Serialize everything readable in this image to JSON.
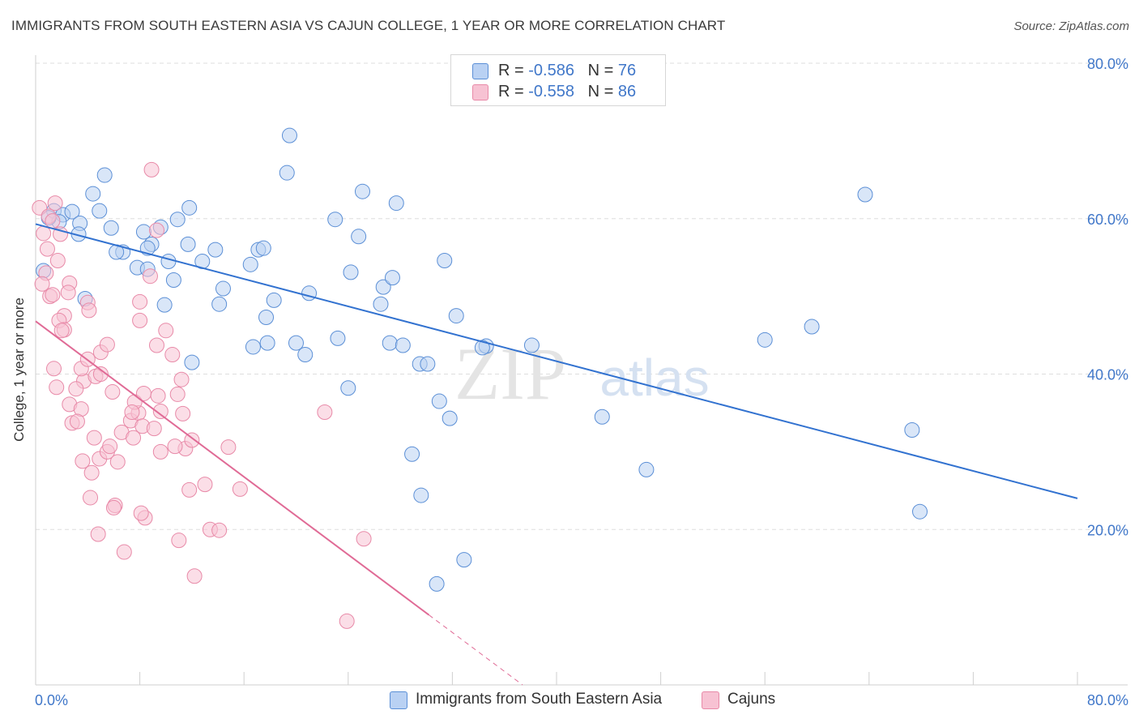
{
  "header": {
    "title": "IMMIGRANTS FROM SOUTH EASTERN ASIA VS CAJUN COLLEGE, 1 YEAR OR MORE CORRELATION CHART",
    "source": "Source: ZipAtlas.com"
  },
  "watermark": {
    "zip": "ZIP",
    "atlas": "atlas"
  },
  "legend": {
    "rows": [
      {
        "r_label": "R = ",
        "r_value": "-0.586",
        "n_label": "N = ",
        "n_value": "76"
      },
      {
        "r_label": "R = ",
        "r_value": "-0.558",
        "n_label": "N = ",
        "n_value": "86"
      }
    ]
  },
  "colors": {
    "blue_fill": "#b9d1f3",
    "blue_stroke": "#5b8fd6",
    "blue_line": "#3272d0",
    "pink_fill": "#f7c2d3",
    "pink_stroke": "#e88aa8",
    "pink_line": "#e06b96",
    "axis_label": "#4077c9",
    "grid": "#dddddd"
  },
  "chart_data": {
    "type": "scatter",
    "title": "IMMIGRANTS FROM SOUTH EASTERN ASIA VS CAJUN COLLEGE, 1 YEAR OR MORE CORRELATION CHART",
    "xlabel": "",
    "ylabel": "College, 1 year or more",
    "xlim": [
      0,
      80
    ],
    "ylim": [
      0,
      80
    ],
    "x_tick_labels": [
      "0.0%",
      "80.0%"
    ],
    "y_tick_labels": [
      "20.0%",
      "40.0%",
      "60.0%",
      "80.0%"
    ],
    "y_ticks": [
      20,
      40,
      60,
      80
    ],
    "grid": true,
    "legend_position": "top-center and bottom",
    "series": [
      {
        "name": "Immigrants from South Eastern Asia",
        "color": "#5b8fd6",
        "trend": {
          "x": [
            0,
            80
          ],
          "y": [
            59.3,
            24.0
          ]
        },
        "points": [
          [
            1.4,
            61.0
          ],
          [
            2.1,
            60.5
          ],
          [
            2.8,
            60.9
          ],
          [
            0.6,
            53.3
          ],
          [
            1.8,
            59.6
          ],
          [
            3.4,
            59.4
          ],
          [
            4.4,
            63.2
          ],
          [
            5.3,
            65.6
          ],
          [
            4.9,
            61.0
          ],
          [
            3.3,
            58.0
          ],
          [
            5.8,
            58.8
          ],
          [
            6.7,
            55.7
          ],
          [
            6.2,
            55.7
          ],
          [
            8.3,
            58.3
          ],
          [
            9.6,
            58.9
          ],
          [
            8.9,
            56.7
          ],
          [
            7.8,
            53.7
          ],
          [
            8.6,
            56.2
          ],
          [
            10.9,
            59.9
          ],
          [
            11.8,
            61.4
          ],
          [
            12.8,
            54.5
          ],
          [
            10.2,
            54.5
          ],
          [
            10.6,
            52.1
          ],
          [
            9.9,
            48.9
          ],
          [
            11.7,
            56.7
          ],
          [
            13.8,
            56.0
          ],
          [
            14.4,
            51.0
          ],
          [
            14.1,
            49.0
          ],
          [
            16.5,
            54.1
          ],
          [
            17.1,
            56.0
          ],
          [
            17.5,
            56.2
          ],
          [
            18.3,
            49.5
          ],
          [
            17.7,
            47.3
          ],
          [
            19.3,
            65.9
          ],
          [
            19.5,
            70.7
          ],
          [
            21.0,
            50.4
          ],
          [
            20.0,
            44.0
          ],
          [
            20.7,
            42.5
          ],
          [
            23.0,
            59.9
          ],
          [
            23.2,
            44.6
          ],
          [
            24.0,
            38.2
          ],
          [
            24.2,
            53.1
          ],
          [
            24.8,
            57.7
          ],
          [
            25.1,
            63.5
          ],
          [
            26.5,
            49.0
          ],
          [
            26.7,
            51.2
          ],
          [
            27.4,
            52.4
          ],
          [
            27.2,
            44.0
          ],
          [
            28.2,
            43.7
          ],
          [
            27.7,
            62.0
          ],
          [
            28.9,
            29.7
          ],
          [
            29.6,
            24.4
          ],
          [
            29.5,
            41.3
          ],
          [
            30.1,
            41.3
          ],
          [
            31.0,
            36.5
          ],
          [
            31.4,
            54.6
          ],
          [
            31.8,
            34.3
          ],
          [
            32.3,
            47.5
          ],
          [
            32.9,
            16.1
          ],
          [
            30.8,
            13.0
          ],
          [
            34.6,
            43.6
          ],
          [
            34.3,
            43.4
          ],
          [
            38.1,
            43.7
          ],
          [
            43.5,
            34.5
          ],
          [
            46.9,
            27.7
          ],
          [
            17.8,
            44.0
          ],
          [
            56.0,
            44.4
          ],
          [
            59.6,
            46.1
          ],
          [
            63.7,
            63.1
          ],
          [
            67.3,
            32.8
          ],
          [
            67.9,
            22.3
          ],
          [
            8.6,
            53.5
          ],
          [
            1.0,
            60.1
          ],
          [
            16.7,
            43.5
          ],
          [
            12.0,
            41.5
          ],
          [
            3.8,
            49.7
          ]
        ]
      },
      {
        "name": "Cajuns",
        "color": "#e88aa8",
        "trend": {
          "x": [
            0,
            30.2
          ],
          "y": [
            46.8,
            9.0
          ]
        },
        "points": [
          [
            0.3,
            61.4
          ],
          [
            1.0,
            60.3
          ],
          [
            0.6,
            58.1
          ],
          [
            1.3,
            59.7
          ],
          [
            1.9,
            58.0
          ],
          [
            0.9,
            56.1
          ],
          [
            1.7,
            54.6
          ],
          [
            0.8,
            53.0
          ],
          [
            0.5,
            51.6
          ],
          [
            1.1,
            50.0
          ],
          [
            1.3,
            50.2
          ],
          [
            2.6,
            51.7
          ],
          [
            2.5,
            50.5
          ],
          [
            2.2,
            47.5
          ],
          [
            1.8,
            46.9
          ],
          [
            2.2,
            45.7
          ],
          [
            2.0,
            45.6
          ],
          [
            4.0,
            49.2
          ],
          [
            4.1,
            48.2
          ],
          [
            1.4,
            40.7
          ],
          [
            1.6,
            38.3
          ],
          [
            2.6,
            36.1
          ],
          [
            2.8,
            33.7
          ],
          [
            3.5,
            35.5
          ],
          [
            3.2,
            33.9
          ],
          [
            3.7,
            39.1
          ],
          [
            3.5,
            40.7
          ],
          [
            4.0,
            41.9
          ],
          [
            4.6,
            39.7
          ],
          [
            5.0,
            42.8
          ],
          [
            5.5,
            43.8
          ],
          [
            4.5,
            31.8
          ],
          [
            3.6,
            28.8
          ],
          [
            4.3,
            27.3
          ],
          [
            4.9,
            29.1
          ],
          [
            5.5,
            30.0
          ],
          [
            5.7,
            30.7
          ],
          [
            6.3,
            28.7
          ],
          [
            4.2,
            24.1
          ],
          [
            6.1,
            23.1
          ],
          [
            4.8,
            19.4
          ],
          [
            6.8,
            17.1
          ],
          [
            5.9,
            37.7
          ],
          [
            6.6,
            32.5
          ],
          [
            7.3,
            34.0
          ],
          [
            7.9,
            35.0
          ],
          [
            7.6,
            36.4
          ],
          [
            8.3,
            37.5
          ],
          [
            8.2,
            33.3
          ],
          [
            8.0,
            46.9
          ],
          [
            8.0,
            49.3
          ],
          [
            8.8,
            52.6
          ],
          [
            9.4,
            37.2
          ],
          [
            9.6,
            35.2
          ],
          [
            9.6,
            30.0
          ],
          [
            9.3,
            43.7
          ],
          [
            10.0,
            45.6
          ],
          [
            10.5,
            42.5
          ],
          [
            10.9,
            37.4
          ],
          [
            11.2,
            39.3
          ],
          [
            11.5,
            30.4
          ],
          [
            11.8,
            25.1
          ],
          [
            11.0,
            18.6
          ],
          [
            12.0,
            31.5
          ],
          [
            12.2,
            14.0
          ],
          [
            13.0,
            25.8
          ],
          [
            13.4,
            20.0
          ],
          [
            14.8,
            30.6
          ],
          [
            15.7,
            25.2
          ],
          [
            9.3,
            58.5
          ],
          [
            8.9,
            66.3
          ],
          [
            7.5,
            31.8
          ],
          [
            8.4,
            21.5
          ],
          [
            8.1,
            22.1
          ],
          [
            14.1,
            19.9
          ],
          [
            22.2,
            35.1
          ],
          [
            25.2,
            18.8
          ],
          [
            23.9,
            8.2
          ],
          [
            5.0,
            40.0
          ],
          [
            10.7,
            30.7
          ],
          [
            7.4,
            35.1
          ],
          [
            6.0,
            22.8
          ],
          [
            11.3,
            34.9
          ],
          [
            9.1,
            33.0
          ],
          [
            3.1,
            38.1
          ],
          [
            1.5,
            62.0
          ]
        ]
      }
    ]
  }
}
